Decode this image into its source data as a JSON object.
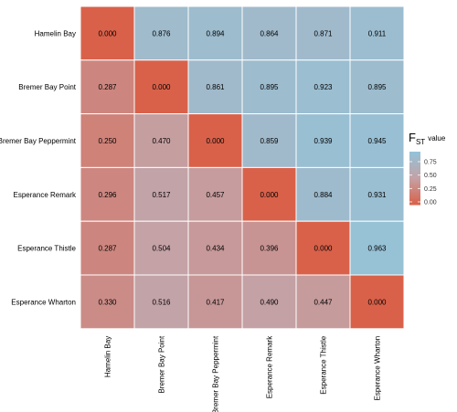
{
  "chart_data": {
    "type": "heatmap",
    "rows": [
      "Hamelin Bay",
      "Bremer Bay Point",
      "Bremer Bay Peppermint",
      "Esperance Remark",
      "Esperance Thistle",
      "Esperance Wharton"
    ],
    "columns": [
      "Hamelin Bay",
      "Bremer Bay Point",
      "Bremer Bay Peppermint",
      "Esperance Remark",
      "Esperance Thistle",
      "Esperance Wharton"
    ],
    "values": [
      [
        "0.000",
        "0.876",
        "0.894",
        "0.864",
        "0.871",
        "0.911"
      ],
      [
        "0.287",
        "0.000",
        "0.861",
        "0.895",
        "0.923",
        "0.895"
      ],
      [
        "0.250",
        "0.470",
        "0.000",
        "0.859",
        "0.939",
        "0.945"
      ],
      [
        "0.296",
        "0.517",
        "0.457",
        "0.000",
        "0.884",
        "0.931"
      ],
      [
        "0.287",
        "0.504",
        "0.434",
        "0.396",
        "0.000",
        "0.963"
      ],
      [
        "0.330",
        "0.516",
        "0.417",
        "0.490",
        "0.447",
        "0.000"
      ]
    ],
    "legend": {
      "title_main": "F",
      "title_sub": "ST",
      "title_suffix": "value",
      "ticks": [
        "0.00",
        "0.25",
        "0.50",
        "0.75"
      ],
      "range": [
        0,
        1
      ],
      "placement": "right"
    },
    "colors": {
      "low": "#d9614a",
      "mid": "#c4a2a6",
      "high": "#93c3d9"
    },
    "grid": true
  }
}
